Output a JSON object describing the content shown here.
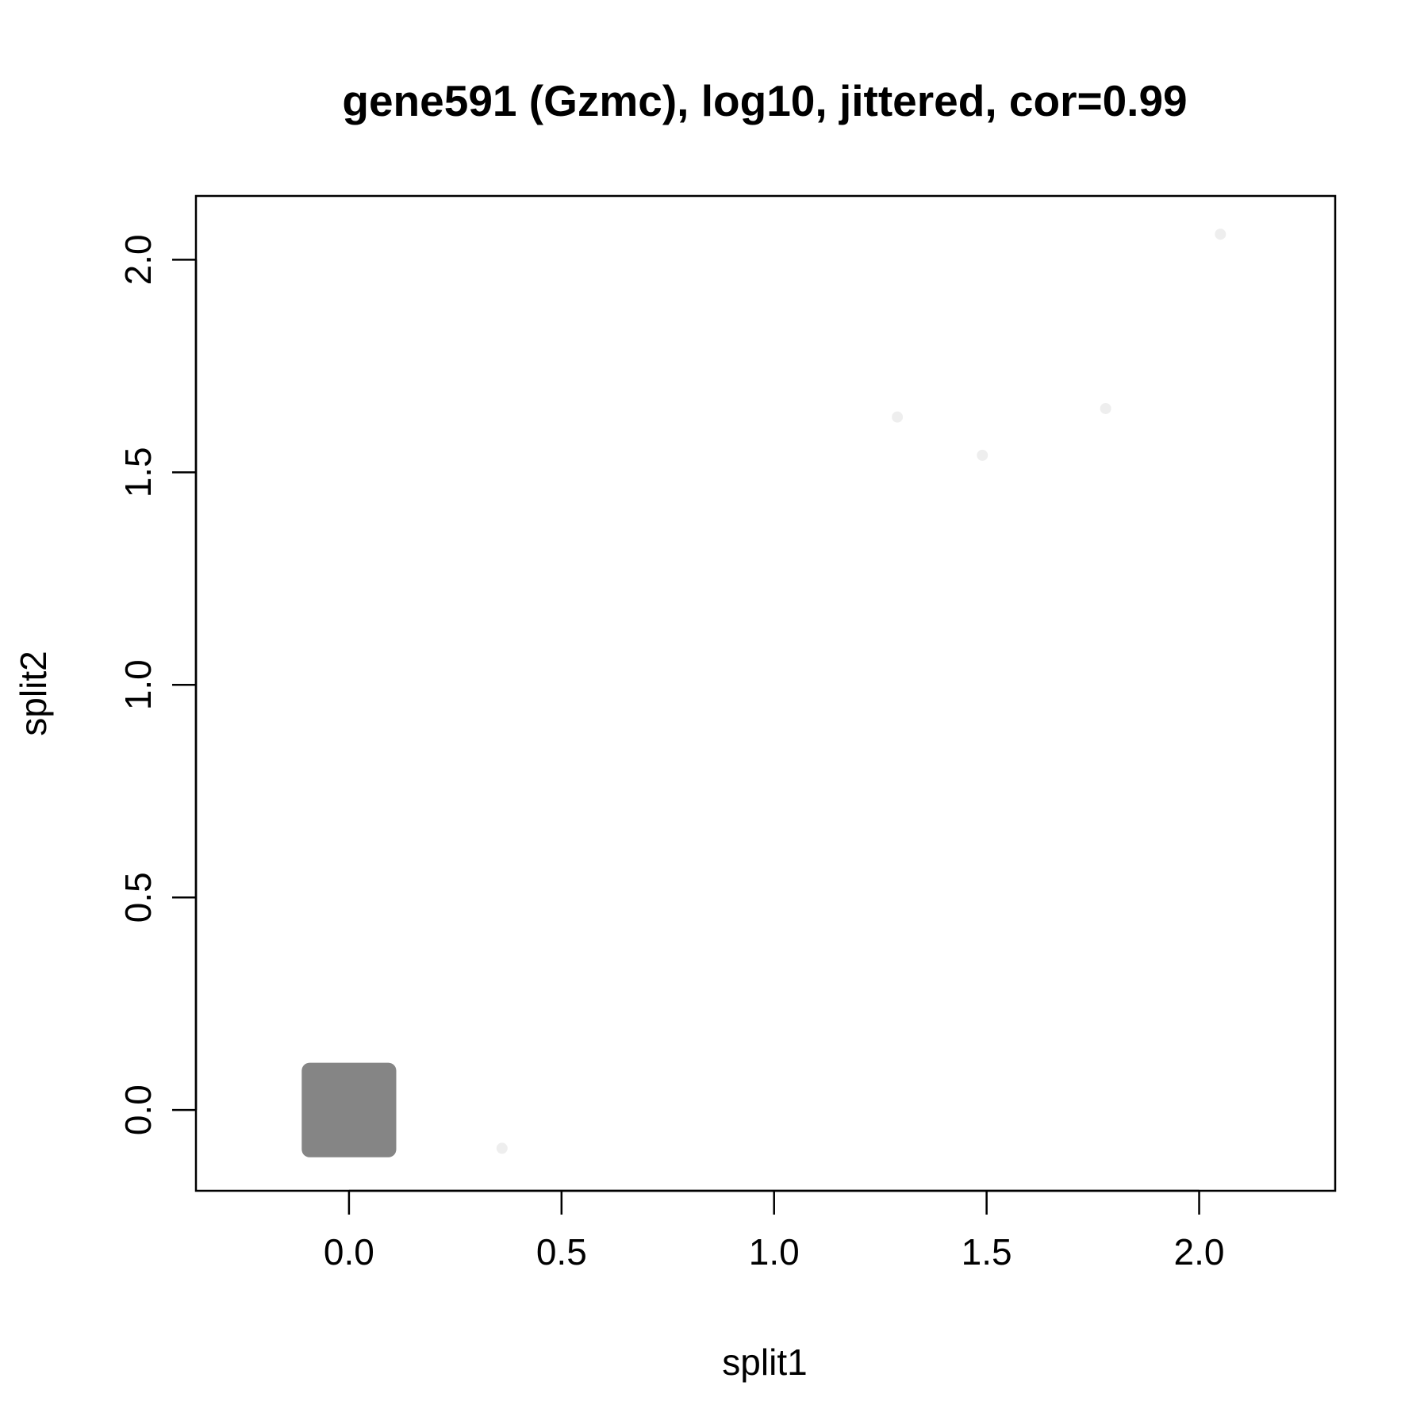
{
  "chart_data": {
    "type": "scatter",
    "title": "gene591 (Gzmc), log10, jittered, cor=0.99",
    "xlabel": "split1",
    "ylabel": "split2",
    "xlim": [
      -0.36,
      2.32
    ],
    "ylim": [
      -0.19,
      2.15
    ],
    "x_ticks": [
      0.0,
      0.5,
      1.0,
      1.5,
      2.0
    ],
    "x_tick_labels": [
      "0.0",
      "0.5",
      "1.0",
      "1.5",
      "2.0"
    ],
    "y_ticks": [
      0.0,
      0.5,
      1.0,
      1.5,
      2.0
    ],
    "y_tick_labels": [
      "0.0",
      "0.5",
      "1.0",
      "1.5",
      "2.0"
    ],
    "grid": false,
    "legend": false,
    "dense_cluster": {
      "x_range": [
        -0.1,
        0.1
      ],
      "y_range": [
        -0.1,
        0.1
      ],
      "color": "#858585"
    },
    "points": [
      {
        "x": 0.36,
        "y": -0.09,
        "color": "#eeeeee"
      },
      {
        "x": 1.29,
        "y": 1.63,
        "color": "#eeeeee"
      },
      {
        "x": 1.49,
        "y": 1.54,
        "color": "#eeeeee"
      },
      {
        "x": 1.78,
        "y": 1.65,
        "color": "#eeeeee"
      },
      {
        "x": 2.05,
        "y": 2.06,
        "color": "#eeeeee"
      }
    ]
  }
}
